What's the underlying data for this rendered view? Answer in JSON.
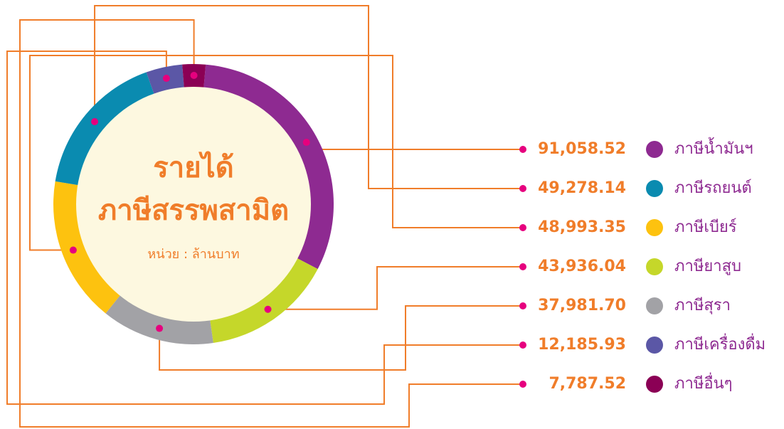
{
  "chart_data": {
    "type": "donut",
    "title": [
      "รายได้",
      "ภาษีสรรพสามิต"
    ],
    "subtitle": "หน่วย : ล้านบาท",
    "categories": [
      "ภาษีน้ำมันฯ",
      "ภาษีรถยนต์",
      "ภาษีเบียร์",
      "ภาษียาสูบ",
      "ภาษีสุรา",
      "ภาษีเครื่องดื่ม",
      "ภาษีอื่นๆ"
    ],
    "values": [
      91058.52,
      49278.14,
      48993.35,
      43936.04,
      37981.7,
      12185.93,
      7787.52
    ],
    "value_labels": [
      "91,058.52",
      "49,278.14",
      "48,993.35",
      "43,936.04",
      "37,981.70",
      "12,185.93",
      "7,787.52"
    ],
    "colors": [
      "#8e2a91",
      "#0a8bb0",
      "#fdc20f",
      "#c5d72a",
      "#a2a2a6",
      "#5b57a6",
      "#8b0055"
    ]
  }
}
